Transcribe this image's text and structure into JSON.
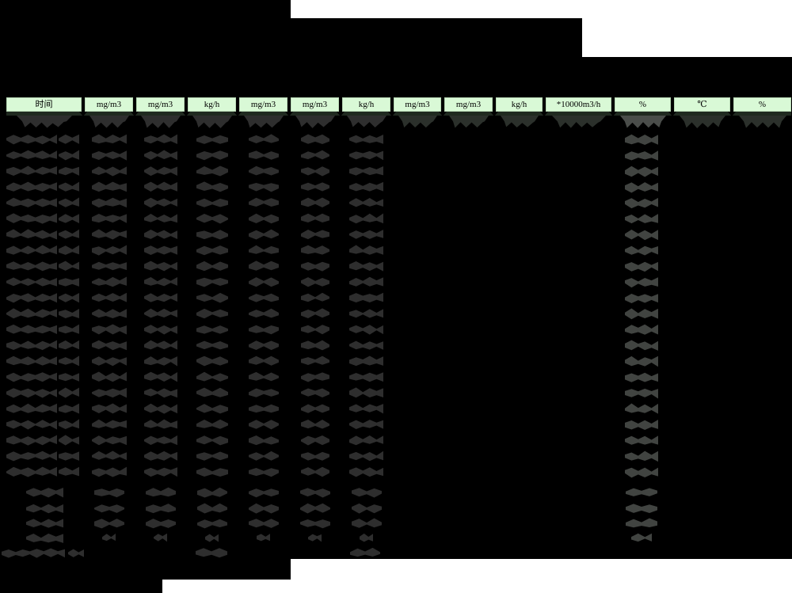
{
  "report": {
    "description_of_visible_content": "redacted data table",
    "unit_header_row": {
      "cells": [
        "时间",
        "mg/m3",
        "mg/m3",
        "kg/h",
        "mg/m3",
        "mg/m3",
        "kg/h",
        "mg/m3",
        "mg/m3",
        "kg/h",
        "*10000m3/h",
        "%",
        "℃",
        "%"
      ]
    },
    "redaction": {
      "all_values_obscured": true,
      "data_row_count": 23,
      "summary_row_count": 4,
      "footer_note_row": true,
      "columns_with_scribbled_values_zero_based": [
        0,
        1,
        2,
        3,
        4,
        5,
        6,
        11
      ],
      "first_data_row_has_marks_in_all_columns": true,
      "footer_note_value_columns_zero_based": [
        3,
        6
      ]
    }
  },
  "colors": {
    "background": "#000000",
    "page_white": "#ffffff",
    "header_cell_bg": "#d9f9d6",
    "header_text": "#000000",
    "header_underlay_strip": "#202a20",
    "scribble_dark": "#2e2e2e",
    "scribble_light": "#414441",
    "scribble_row1_light": "#4a4d4a",
    "scribble_wedge": "#2b302b"
  }
}
